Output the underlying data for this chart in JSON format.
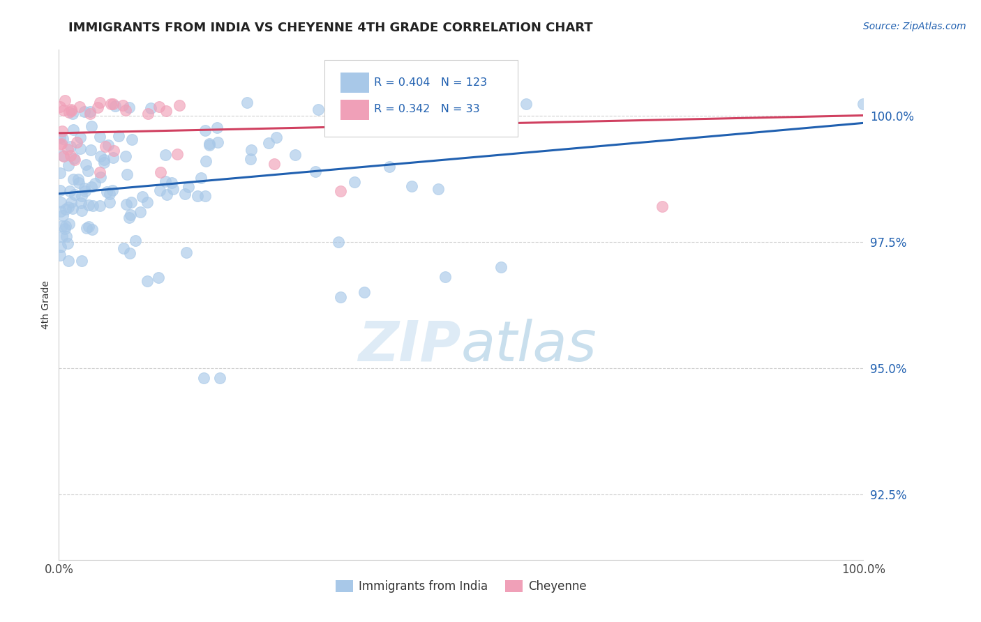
{
  "title": "IMMIGRANTS FROM INDIA VS CHEYENNE 4TH GRADE CORRELATION CHART",
  "source_text": "Source: ZipAtlas.com",
  "ylabel": "4th Grade",
  "xmin": 0.0,
  "xmax": 100.0,
  "ymin": 91.2,
  "ymax": 101.3,
  "yticks": [
    92.5,
    95.0,
    97.5,
    100.0
  ],
  "ytick_labels": [
    "92.5%",
    "95.0%",
    "97.5%",
    "100.0%"
  ],
  "legend_items": [
    "Immigrants from India",
    "Cheyenne"
  ],
  "blue_R": 0.404,
  "blue_N": 123,
  "pink_R": 0.342,
  "pink_N": 33,
  "blue_color": "#a8c8e8",
  "pink_color": "#f0a0b8",
  "blue_line_color": "#2060b0",
  "pink_line_color": "#d04060",
  "legend_text_color": "#2060b0",
  "title_color": "#222222",
  "background_color": "#ffffff",
  "watermark_color": "#c8dff0",
  "grid_color": "#d0d0d0",
  "blue_line_start_y": 98.45,
  "blue_line_end_y": 99.85,
  "pink_line_start_y": 99.65,
  "pink_line_end_y": 100.0
}
